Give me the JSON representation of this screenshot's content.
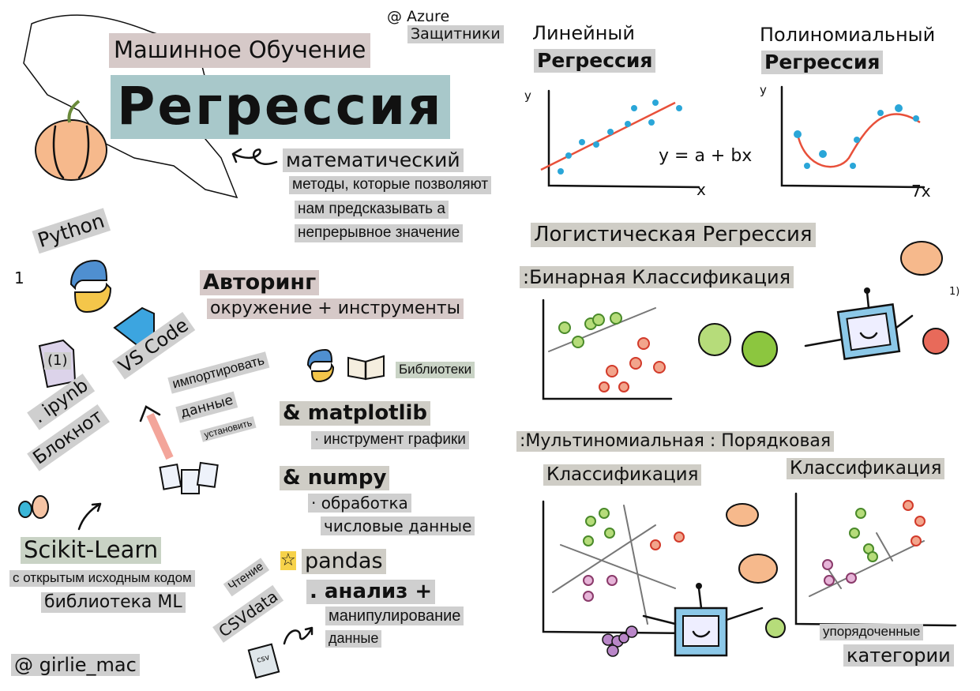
{
  "credits": {
    "azure_line1": "@ Azure",
    "azure_line2": "Защитники",
    "author": "@ girlie_mac"
  },
  "header": {
    "subtitle": "Машинное Обучение",
    "title": "Регрессия"
  },
  "definition": {
    "heading": "математический",
    "line1": "методы, которые позволяют",
    "line2": "нам предсказывать а",
    "line3": "непрерывное значение"
  },
  "tools": {
    "python": "Python",
    "python_num": "1",
    "ipynb_num": "(1)",
    "ipynb": ". ipynb",
    "notebook": "Блокнот",
    "vscode": "VS Code",
    "import_1": "импортировать",
    "import_2": "данные",
    "import_3": "установить",
    "authoring": "Авторинг",
    "authoring_sub": "окружение + инструменты",
    "libraries": "Библиотеки",
    "matplotlib": "& matplotlib",
    "matplotlib_desc": "· инструмент графики",
    "numpy": "& numpy",
    "numpy_desc1": "· обработка",
    "numpy_desc2": "числовые данные",
    "pandas": "pandas",
    "pandas_desc1": ". анализ +",
    "pandas_desc2": "манипулирование",
    "pandas_desc3": "данные",
    "read": "Чтение",
    "csvdata": "CSVdata",
    "csv_icon_text": "csv",
    "sklearn": "Scikit-Learn",
    "sklearn_desc1": "с открытым исходным кодом",
    "sklearn_desc2": "библиотека ML"
  },
  "regression_types": {
    "linear_1": "Линейный",
    "linear_2": "Регрессия",
    "linear_formula": "y = a + bx",
    "linear_x": "x",
    "linear_y": "y",
    "poly_1": "Полиномиальный",
    "poly_2": "Регрессия",
    "poly_x": "7x",
    "poly_y": "y",
    "logistic": "Логистическая Регрессия",
    "binary": ":Бинарная Классификация",
    "multi_ordinal": ":Мультиномиальная : Порядковая",
    "multi_class": "Классификация",
    "ordinal_class": "Классификация",
    "ordered_1": "упорядоченные",
    "ordered_2": "категории",
    "note": "1)"
  },
  "colors": {
    "title_box": "#a8c8ca",
    "label_gray": "#cfcfcf",
    "accent_red": "#e8503a",
    "point_blue": "#2aa6d8",
    "apple_green": "#8cc63f"
  }
}
